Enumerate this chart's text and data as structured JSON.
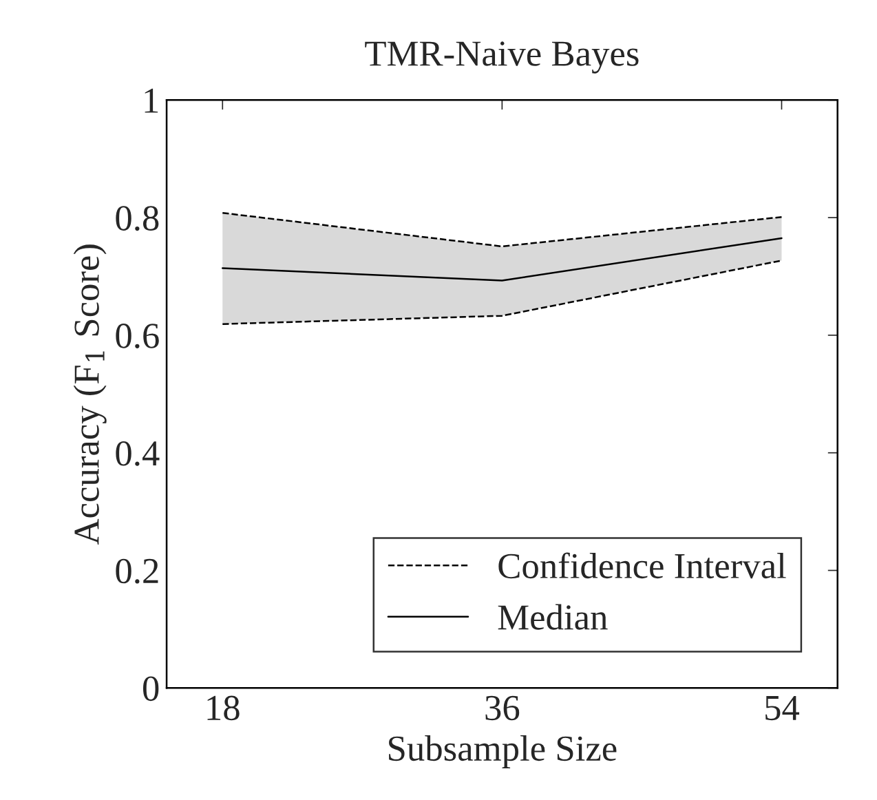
{
  "chart_data": {
    "type": "line",
    "title": "TMR-Naive Bayes",
    "xlabel": "Subsample Size",
    "ylabel": "Accuracy (F$_{1}$ Score)",
    "x": [
      18,
      36,
      54
    ],
    "series": [
      {
        "name": "Confidence Interval",
        "color": "#000000",
        "line_style": "dashed",
        "values": [
          0.808,
          0.751,
          0.801
        ]
      },
      {
        "color": "#000000",
        "line_style": "dashed",
        "values": [
          0.619,
          0.633,
          0.727
        ]
      },
      {
        "name": "Median",
        "color": "#000000",
        "line_style": "solid",
        "values": [
          0.714,
          0.693,
          0.765
        ],
        "lower": [
          0.619,
          0.633,
          0.727
        ],
        "upper": [
          0.808,
          0.751,
          0.801
        ]
      }
    ],
    "xlim": [
      14.4,
      57.6
    ],
    "xticks": [
      18,
      36,
      54
    ],
    "ylim": [
      0,
      1
    ],
    "yticks": [
      0,
      0.2,
      0.4,
      0.6,
      0.8,
      1
    ],
    "grid": false,
    "legend": "bottom right",
    "marker": "none"
  }
}
